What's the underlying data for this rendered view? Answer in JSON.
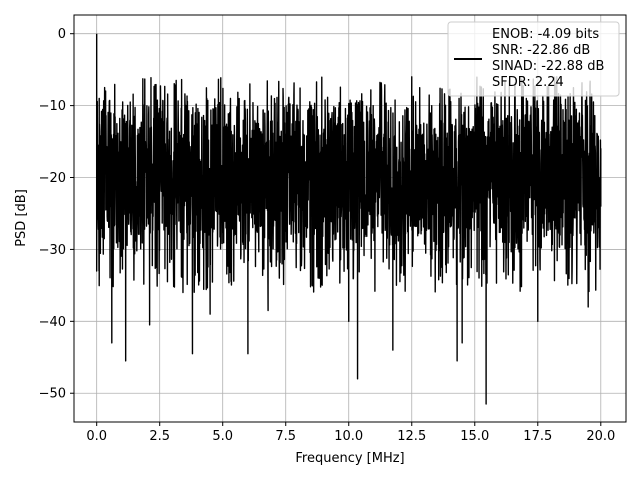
{
  "chart_data": {
    "type": "line",
    "xlabel": "Frequency [MHz]",
    "ylabel": "PSD [dB]",
    "xlim": [
      -0.9,
      21.0
    ],
    "ylim": [
      -54.0,
      2.6
    ],
    "xticks": [
      0.0,
      2.5,
      5.0,
      7.5,
      10.0,
      12.5,
      15.0,
      17.5,
      20.0
    ],
    "xtick_labels": [
      "0.0",
      "2.5",
      "5.0",
      "7.5",
      "10.0",
      "12.5",
      "15.0",
      "17.5",
      "20.0"
    ],
    "yticks": [
      0,
      -10,
      -20,
      -30,
      -40,
      -50
    ],
    "ytick_labels": [
      "0",
      "−10",
      "−20",
      "−30",
      "−40",
      "−50"
    ],
    "grid": true,
    "legend_position": "upper-right",
    "series_color": "#000000",
    "series": [
      {
        "legend_lines": [
          "ENOB: -4.09 bits",
          "SNR: -22.86 dB",
          "SINAD: -22.88 dB",
          "SFDR: 2.24"
        ],
        "noise_floor_db": -20,
        "noise_band_db": [
          -30,
          -9
        ],
        "points": [
          [
            0.0,
            0.0
          ],
          [
            0.05,
            -15.5
          ],
          [
            0.1,
            -9.0
          ],
          [
            0.3,
            -28.5
          ],
          [
            0.6,
            -43.0
          ],
          [
            1.15,
            -45.5
          ],
          [
            2.1,
            -40.5
          ],
          [
            3.8,
            -44.5
          ],
          [
            4.5,
            -39.0
          ],
          [
            6.0,
            -44.5
          ],
          [
            6.8,
            -38.5
          ],
          [
            8.5,
            -35.0
          ],
          [
            10.0,
            -40.0
          ],
          [
            10.35,
            -48.0
          ],
          [
            11.75,
            -44.0
          ],
          [
            12.5,
            -6.0
          ],
          [
            14.3,
            -45.5
          ],
          [
            14.5,
            -43.0
          ],
          [
            15.45,
            -51.5
          ],
          [
            17.5,
            -40.0
          ],
          [
            19.5,
            -38.0
          ],
          [
            20.0,
            -16.0
          ]
        ]
      }
    ]
  }
}
